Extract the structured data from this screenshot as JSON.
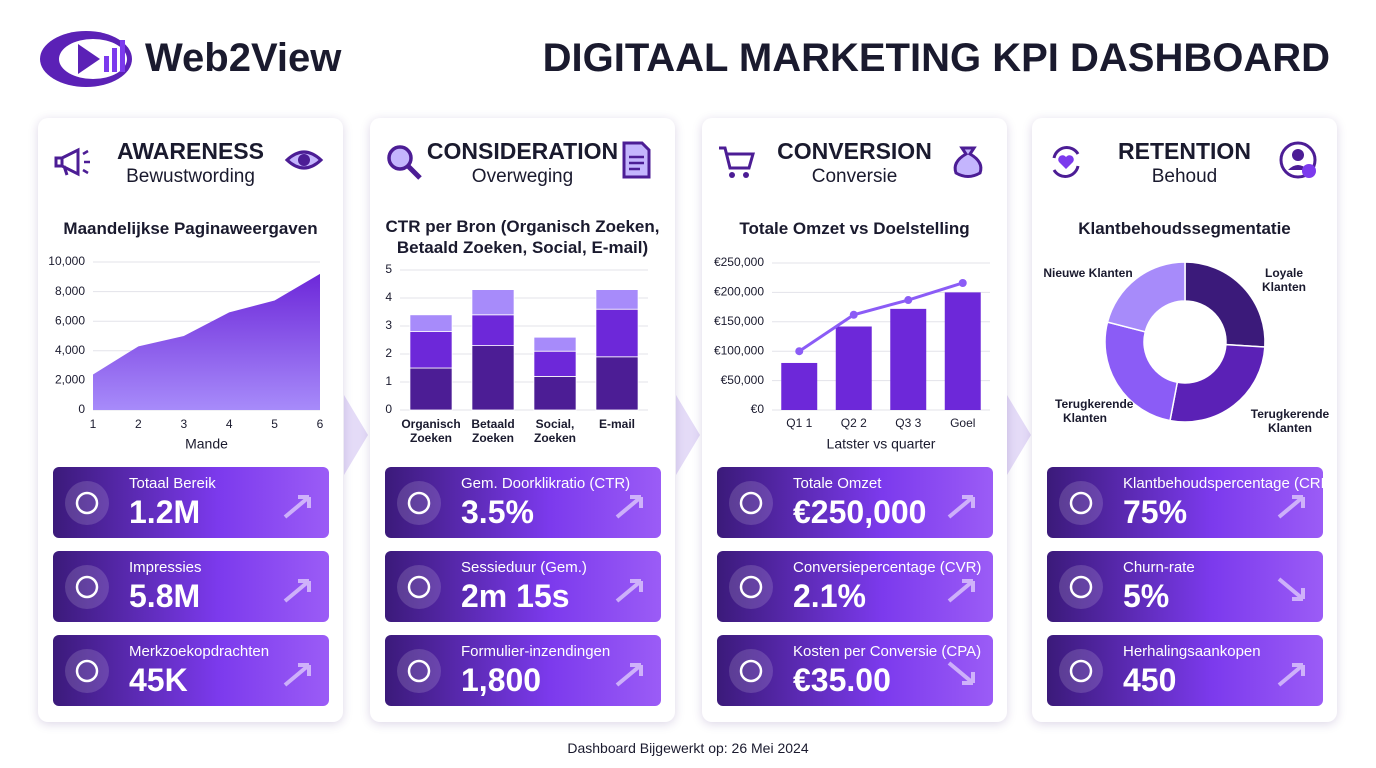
{
  "header": {
    "logo": "Web2View",
    "title": "DIGITAAL MARKETING KPI DASHBOARD"
  },
  "panels": [
    {
      "title": "AWARENESS",
      "subtitle": "Bewustwording",
      "kpis": [
        {
          "label": "Totaal Bereik",
          "value": "1.2M",
          "trend": "up"
        },
        {
          "label": "Impressies",
          "value": "5.8M",
          "trend": "up"
        },
        {
          "label": "Merkzoekopdrachten",
          "value": "45K",
          "trend": "up"
        }
      ]
    },
    {
      "title": "CONSIDERATION",
      "subtitle": "Overweging",
      "kpis": [
        {
          "label": "Gem. Doorklikratio (CTR)",
          "value": "3.5%",
          "trend": "up"
        },
        {
          "label": "Sessieduur (Gem.)",
          "value": "2m 15s",
          "trend": "up"
        },
        {
          "label": "Formulier-inzendingen",
          "value": "1,800",
          "trend": "up"
        }
      ]
    },
    {
      "title": "CONVERSION",
      "subtitle": "Conversie",
      "kpis": [
        {
          "label": "Totale Omzet",
          "value": "€250,000",
          "trend": "up"
        },
        {
          "label": "Conversiepercentage (CVR)",
          "value": "2.1%",
          "trend": "up"
        },
        {
          "label": "Kosten per Conversie (CPA)",
          "value": "€35.00",
          "trend": "down"
        }
      ]
    },
    {
      "title": "RETENTION",
      "subtitle": "Behoud",
      "kpis": [
        {
          "label": "Klantbehoudspercentage (CRR)",
          "value": "75%",
          "trend": "up"
        },
        {
          "label": "Churn-rate",
          "value": "5%",
          "trend": "down"
        },
        {
          "label": "Herhalingsaankopen",
          "value": "450",
          "trend": "up"
        }
      ]
    }
  ],
  "chart_data": [
    {
      "type": "area",
      "title": "Maandelijkse Paginaweergaven",
      "x": [
        1,
        2,
        3,
        4,
        5,
        6
      ],
      "values": [
        2400,
        4300,
        5000,
        6600,
        7400,
        9200
      ],
      "xlim": [
        1,
        6
      ],
      "xticks": [
        1,
        2,
        3,
        4,
        5,
        6
      ],
      "ylim": [
        0,
        10000
      ],
      "yticks": [
        0,
        {
          "value": 2000,
          "label": "2,000"
        },
        {
          "value": 4000,
          "label": "4,000"
        },
        {
          "value": 6000,
          "label": "6,000"
        },
        {
          "value": 8000,
          "label": "8,000"
        },
        {
          "value": 10000,
          "label": "10,000"
        }
      ],
      "xlabel": "Mande",
      "color": "#6d28d9",
      "grid": true
    },
    {
      "type": "stacked_bar",
      "title": "CTR per Bron (Organisch Zoeken, Betaald Zoeken, Social, E-mail)",
      "categories": [
        "Organisch Zoeken",
        "Betaald Zoeken",
        "Social, Zoeken",
        "E-mail"
      ],
      "series": [
        {
          "color": "#4c1d95",
          "values": [
            1.5,
            2.3,
            1.2,
            1.9
          ]
        },
        {
          "color": "#6d28d9",
          "values": [
            1.3,
            1.1,
            0.9,
            1.7
          ]
        },
        {
          "color": "#a78bfa",
          "values": [
            0.6,
            0.9,
            0.5,
            0.7
          ]
        }
      ],
      "ylim": [
        0,
        5
      ],
      "yticks": [
        0,
        1,
        2,
        3,
        4,
        5
      ],
      "grid": true
    },
    {
      "type": "bar_line",
      "title": "Totale Omzet vs Doelstelling",
      "categories": [
        "Q1 1",
        "Q2 2",
        "Q3 3",
        "Goel"
      ],
      "series": [
        {
          "type": "bar",
          "color": "#6d28d9",
          "values": [
            80000,
            142000,
            172000,
            200000
          ]
        },
        {
          "type": "line",
          "color": "#8b5cf6",
          "values": [
            100000,
            162000,
            187000,
            216000
          ]
        }
      ],
      "ylim": [
        0,
        250000
      ],
      "yticks": [
        {
          "value": 0,
          "label": "€0"
        },
        {
          "value": 50000,
          "label": "€50,000"
        },
        {
          "value": 100000,
          "label": "€100,000"
        },
        {
          "value": 150000,
          "label": "€150,000"
        },
        {
          "value": 200000,
          "label": "€200,000"
        },
        {
          "value": 250000,
          "label": "€250,000"
        }
      ],
      "xlabel": "Latster vs quarter",
      "grid": true
    },
    {
      "type": "donut",
      "title": "Klantbehoudssegmentatie",
      "categories": [
        "Loyale Klanten",
        "Terugkerende Klanten",
        "Terugkerende Klanten",
        "Nieuwe Klanten"
      ],
      "values": [
        26,
        27,
        26,
        21
      ],
      "colors": [
        "#3b1a7a",
        "#5b21b6",
        "#8b5cf6",
        "#a78bfa"
      ]
    }
  ],
  "footer": "Dashboard Bijgewerkt op: 26 Mei 2024"
}
